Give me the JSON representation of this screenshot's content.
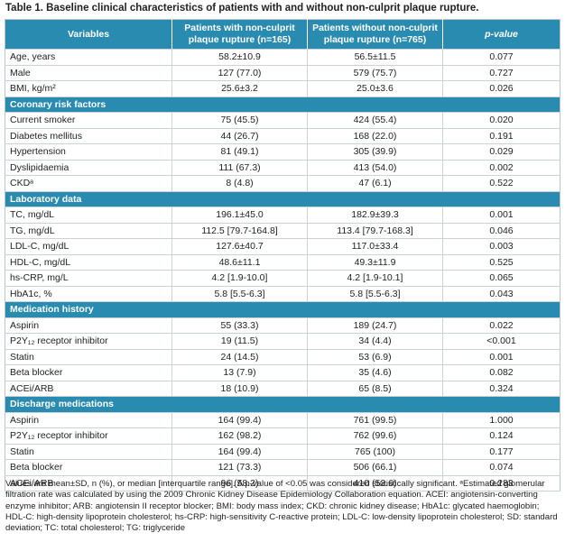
{
  "title": "Table 1. Baseline clinical characteristics of patients with and without non-culprit plaque rupture.",
  "table": {
    "header": [
      "Variables",
      "Patients with non-culprit plaque rupture (n=165)",
      "Patients without non-culprit plaque rupture (n=765)",
      "p-value"
    ],
    "rows": [
      [
        "Age, years",
        "58.2±10.9",
        "56.5±11.5",
        "0.077"
      ],
      [
        "Male",
        "127 (77.0)",
        "579 (75.7)",
        "0.727"
      ],
      [
        "BMI, kg/m²",
        "25.6±3.2",
        "25.0±3.6",
        "0.026"
      ]
    ],
    "sections": [
      {
        "title": "Coronary risk factors",
        "rows": [
          [
            "Current smoker",
            "75 (45.5)",
            "424 (55.4)",
            "0.020"
          ],
          [
            "Diabetes mellitus",
            "44 (26.7)",
            "168 (22.0)",
            "0.191"
          ],
          [
            "Hypertension",
            "81 (49.1)",
            "305 (39.9)",
            "0.029"
          ],
          [
            "Dyslipidaemia",
            "111 (67.3)",
            "413 (54.0)",
            "0.002"
          ],
          [
            "CKDᵃ",
            "8 (4.8)",
            "47 (6.1)",
            "0.522"
          ]
        ]
      },
      {
        "title": "Laboratory data",
        "rows": [
          [
            "TC, mg/dL",
            "196.1±45.0",
            "182.9±39.3",
            "0.001"
          ],
          [
            "TG, mg/dL",
            "112.5 [79.7-164.8]",
            "113.4 [79.7-168.3]",
            "0.046"
          ],
          [
            "LDL-C, mg/dL",
            "127.6±40.7",
            "117.0±33.4",
            "0.003"
          ],
          [
            "HDL-C, mg/dL",
            "48.6±11.1",
            "49.3±11.9",
            "0.525"
          ],
          [
            "hs-CRP, mg/L",
            "4.2 [1.9-10.0]",
            "4.2 [1.9-10.1]",
            "0.065"
          ],
          [
            "HbA1c, %",
            "5.8 [5.5-6.3]",
            "5.8 [5.5-6.3]",
            "0.043"
          ]
        ]
      },
      {
        "title": "Medication history",
        "rows": [
          [
            "Aspirin",
            "55 (33.3)",
            "189 (24.7)",
            "0.022"
          ],
          [
            "P2Y₁₂ receptor inhibitor",
            "19 (11.5)",
            "34 (4.4)",
            "<0.001"
          ],
          [
            "Statin",
            "24 (14.5)",
            "53 (6.9)",
            "0.001"
          ],
          [
            "Beta blocker",
            "13 (7.9)",
            "35 (4.6)",
            "0.082"
          ],
          [
            "ACEi/ARB",
            "18 (10.9)",
            "65 (8.5)",
            "0.324"
          ]
        ]
      },
      {
        "title": "Discharge medications",
        "rows": [
          [
            "Aspirin",
            "164 (99.4)",
            "761 (99.5)",
            "1.000"
          ],
          [
            "P2Y₁₂ receptor inhibitor",
            "162 (98.2)",
            "762 (99.6)",
            "0.124"
          ],
          [
            "Statin",
            "164 (99.4)",
            "765 (100)",
            "0.177"
          ],
          [
            "Beta blocker",
            "121 (73.3)",
            "506 (66.1)",
            "0.074"
          ],
          [
            "ACEi/ARB",
            "96 (58.2)",
            "410 (53.6)",
            "0.283"
          ]
        ]
      }
    ]
  },
  "footnote": "Values are mean±SD, n (%), or median [interquartile range]. A p-value of <0.05 was considered statistically significant. ᵃEstimated glomerular filtration rate was calculated by using the 2009 Chronic Kidney Disease Epidemiology Collaboration equation. ACEI: angiotensin-converting enzyme inhibitor; ARB: angiotensin II receptor blocker; BMI: body mass index; CKD: chronic kidney disease; HbA1c: glycated haemoglobin; HDL-C: high-density lipoprotein cholesterol; hs-CRP: high-sensitivity C-reactive protein; LDL-C: low-density lipoprotein cholesterol; SD: standard deviation; TC: total cholesterol; TG: triglyceride"
}
